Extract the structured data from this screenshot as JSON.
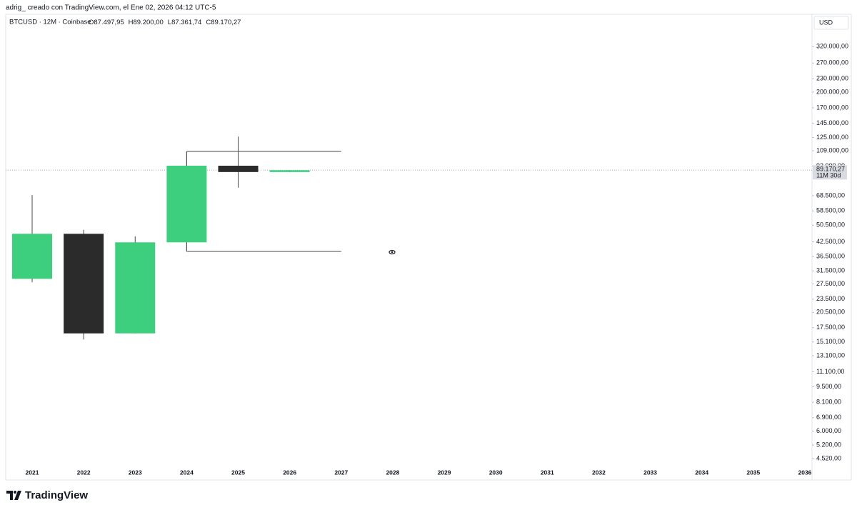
{
  "chart_data": {
    "type": "candlestick",
    "attribution": "adrig_ creado con TradingView.com, el Ene 02, 2026 04:12 UTC-5",
    "symbol": "BTCUSD · 12M · Coinbase",
    "ohlc_header": [
      "O87.497,95",
      "H89.200,00",
      "L87.361,74",
      "C89.170,27"
    ],
    "currency": "USD",
    "brand": "TradingView",
    "log_scale": true,
    "x": [
      "2021",
      "2022",
      "2023",
      "2024",
      "2025",
      "2026",
      "2027",
      "2028",
      "2029",
      "2030",
      "2031",
      "2032",
      "2033",
      "2034",
      "2035",
      "2036"
    ],
    "open": [
      29000,
      46200,
      16500,
      42300,
      93400,
      87497.95,
      null,
      null,
      null,
      null,
      null,
      null,
      null,
      null,
      null,
      null
    ],
    "high": [
      69000,
      48200,
      45000,
      108300,
      126200,
      89200,
      null,
      null,
      null,
      null,
      null,
      null,
      null,
      null,
      null,
      null
    ],
    "low": [
      28000,
      15500,
      16500,
      38500,
      74400,
      87361.74,
      null,
      null,
      null,
      null,
      null,
      null,
      null,
      null,
      null,
      null
    ],
    "close": [
      46200,
      16500,
      42300,
      93400,
      87500,
      89170.27,
      null,
      null,
      null,
      null,
      null,
      null,
      null,
      null,
      null,
      null
    ],
    "up_color": "#3ecf7e",
    "down_color": "#2b2b2b",
    "levels": [
      {
        "value": 108300,
        "from": "2024",
        "to": "2027"
      },
      {
        "value": 38500,
        "from": "2024",
        "to": "2027"
      }
    ],
    "last_price": {
      "value": 89170.27,
      "label": "89.170,27"
    },
    "countdown": "11M 30d",
    "ylim": [
      4200,
      380000
    ],
    "yticks": [
      {
        "value": 320000,
        "label": "320.000,00"
      },
      {
        "value": 270000,
        "label": "270.000,00"
      },
      {
        "value": 230000,
        "label": "230.000,00"
      },
      {
        "value": 200000,
        "label": "200.000,00"
      },
      {
        "value": 170000,
        "label": "170.000,00"
      },
      {
        "value": 145000,
        "label": "145.000,00"
      },
      {
        "value": 125000,
        "label": "125.000,00"
      },
      {
        "value": 109000,
        "label": "109.000,00"
      },
      {
        "value": 93000,
        "label": "93.000,00"
      },
      {
        "value": 68500,
        "label": "68.500,00"
      },
      {
        "value": 58500,
        "label": "58.500,00"
      },
      {
        "value": 50500,
        "label": "50.500,00"
      },
      {
        "value": 42500,
        "label": "42.500,00"
      },
      {
        "value": 36500,
        "label": "36.500,00"
      },
      {
        "value": 31500,
        "label": "31.500,00"
      },
      {
        "value": 27500,
        "label": "27.500,00"
      },
      {
        "value": 23500,
        "label": "23.500,00"
      },
      {
        "value": 20500,
        "label": "20.500,00"
      },
      {
        "value": 17500,
        "label": "17.500,00"
      },
      {
        "value": 15100,
        "label": "15.100,00"
      },
      {
        "value": 13100,
        "label": "13.100,00"
      },
      {
        "value": 11100,
        "label": "11.100,00"
      },
      {
        "value": 9500,
        "label": "9.500,00"
      },
      {
        "value": 8100,
        "label": "8.100,00"
      },
      {
        "value": 6900,
        "label": "6.900,00"
      },
      {
        "value": 6000,
        "label": "6.000,00"
      },
      {
        "value": 5200,
        "label": "5.200,00"
      },
      {
        "value": 4520,
        "label": "4.520,00"
      }
    ]
  }
}
